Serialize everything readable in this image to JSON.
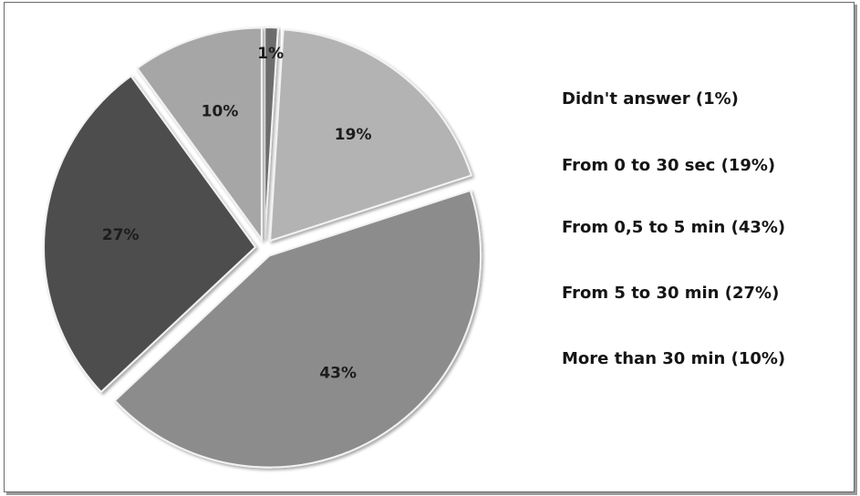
{
  "chart_data": {
    "type": "pie",
    "title": "",
    "categories": [
      "Didn't answer",
      "From 0 to 30 sec",
      "From 0,5 to 5 min",
      "From 5 to 30 min",
      "More than 30 min"
    ],
    "values": [
      1,
      19,
      43,
      27,
      10
    ],
    "data_labels": [
      "1%",
      "19%",
      "43%",
      "27%",
      "10%"
    ],
    "legend": {
      "placement": "right",
      "entries": [
        "Didn't answer (1%)",
        "From 0 to 30 sec (19%)",
        "From 0,5 to 5 min (43%)",
        "From 5 to 30 min (27%)",
        "More than 30 min (10%)"
      ]
    },
    "colors": [
      "#6d6d6d",
      "#b3b3b3",
      "#8c8c8c",
      "#4e4e4e",
      "#a6a6a6"
    ],
    "exploded": true,
    "grid": false
  }
}
